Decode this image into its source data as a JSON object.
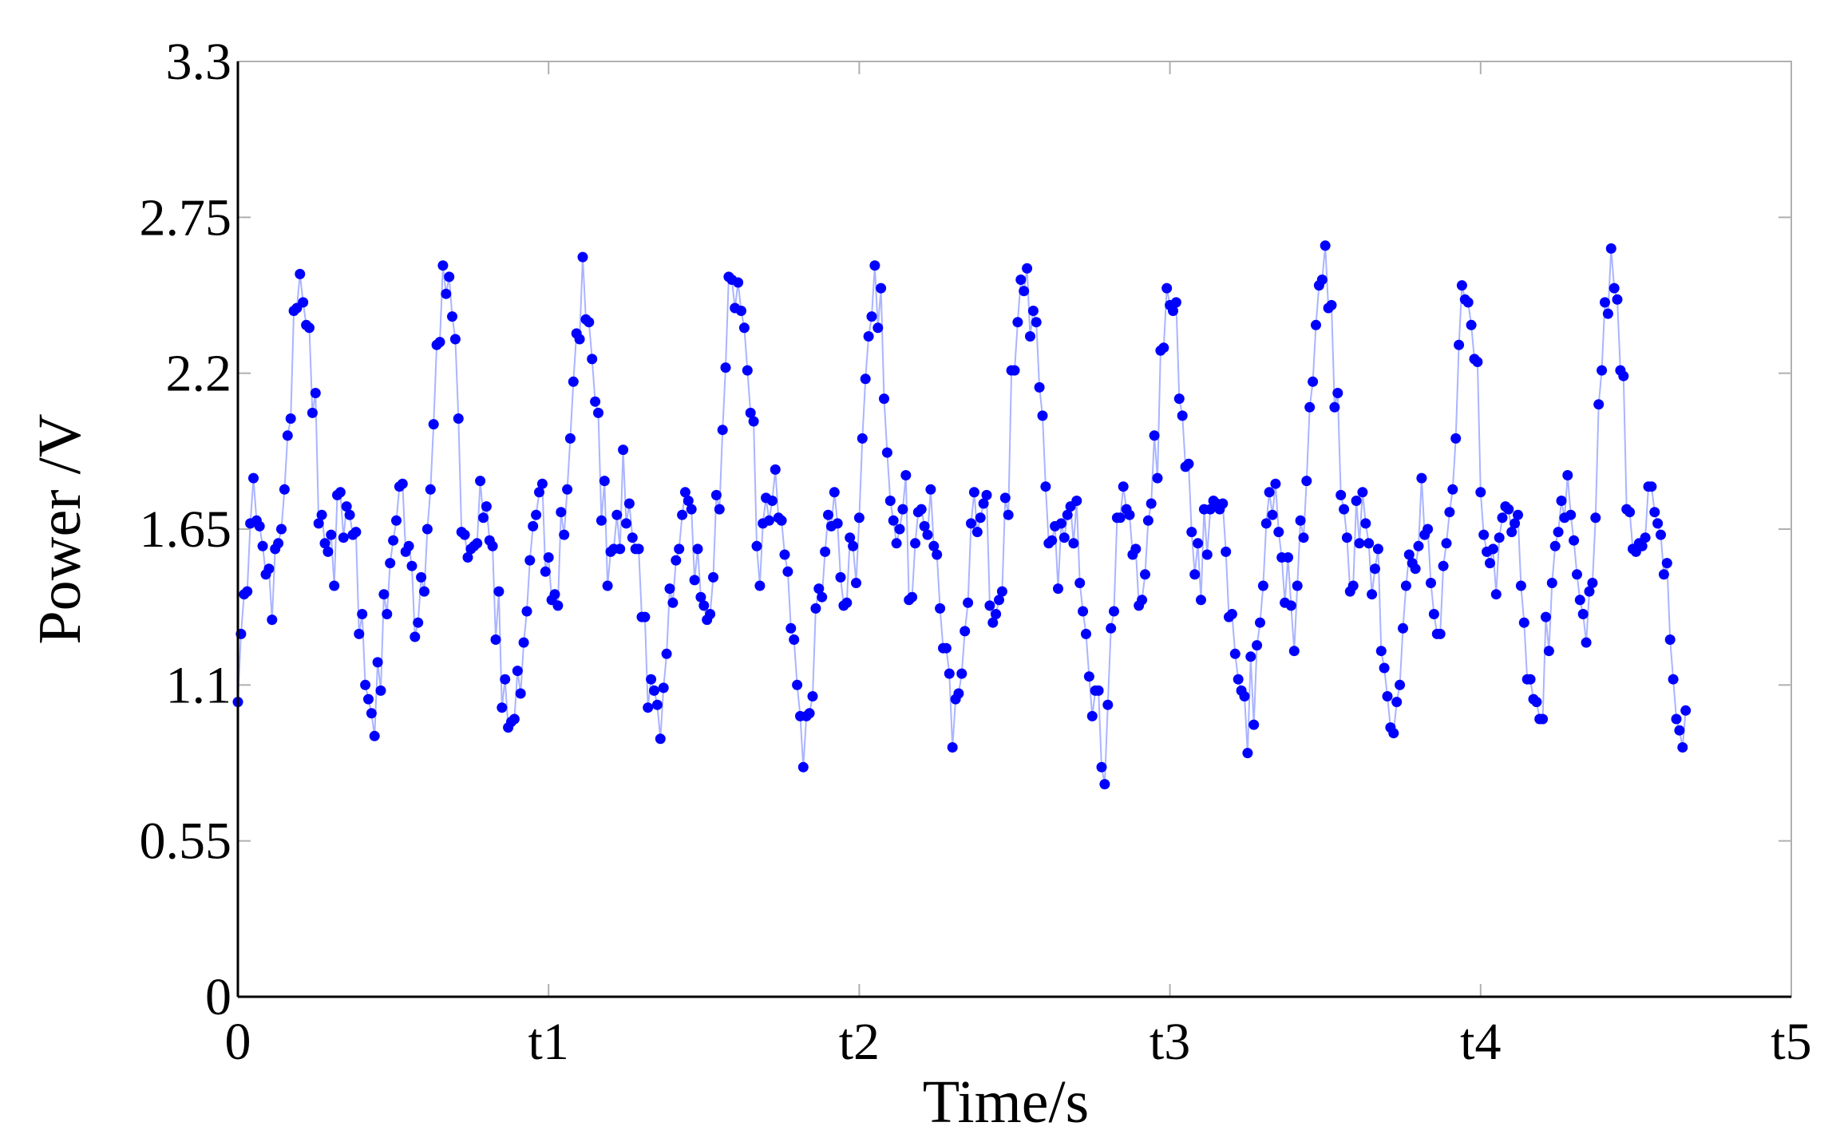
{
  "chart_data": {
    "type": "line",
    "title": "",
    "xlabel": "Time/s",
    "ylabel": "Power /V",
    "xlim": [
      0,
      5
    ],
    "ylim": [
      0,
      3.3
    ],
    "grid": false,
    "legend": null,
    "x_ticks": [
      {
        "value": 0,
        "label": "0"
      },
      {
        "value": 1,
        "label": "t1"
      },
      {
        "value": 2,
        "label": "t2"
      },
      {
        "value": 3,
        "label": "t3"
      },
      {
        "value": 4,
        "label": "t4"
      },
      {
        "value": 5,
        "label": "t5"
      }
    ],
    "y_ticks": [
      {
        "value": 0,
        "label": "0"
      },
      {
        "value": 0.55,
        "label": "0.55"
      },
      {
        "value": 1.1,
        "label": "1.1"
      },
      {
        "value": 1.65,
        "label": "1.65"
      },
      {
        "value": 2.2,
        "label": "2.2"
      },
      {
        "value": 2.75,
        "label": "2.75"
      },
      {
        "value": 3.3,
        "label": "3.3"
      }
    ],
    "colors": {
      "line": "#aab4ff",
      "marker": "#0000ff",
      "axis": "#000000",
      "tick": "#b0b0b0"
    },
    "series": [
      {
        "x_start": 0,
        "x_step": 0.01,
        "values": [
          1.04,
          1.28,
          1.42,
          1.43,
          1.67,
          1.83,
          1.68,
          1.66,
          1.59,
          1.49,
          1.51,
          1.33,
          1.58,
          1.6,
          1.65,
          1.79,
          1.98,
          2.04,
          2.42,
          2.43,
          2.55,
          2.45,
          2.37,
          2.36,
          2.06,
          2.13,
          1.67,
          1.7,
          1.6,
          1.57,
          1.63,
          1.45,
          1.77,
          1.78,
          1.62,
          1.73,
          1.7,
          1.63,
          1.64,
          1.28,
          1.35,
          1.1,
          1.05,
          1.0,
          0.92,
          1.18,
          1.08,
          1.42,
          1.35,
          1.53,
          1.61,
          1.68,
          1.8,
          1.81,
          1.57,
          1.59,
          1.52,
          1.27,
          1.32,
          1.48,
          1.43,
          1.65,
          1.79,
          2.02,
          2.3,
          2.31,
          2.58,
          2.48,
          2.54,
          2.4,
          2.32,
          2.04,
          1.64,
          1.63,
          1.55,
          1.58,
          1.59,
          1.6,
          1.82,
          1.69,
          1.73,
          1.61,
          1.59,
          1.26,
          1.43,
          1.02,
          1.12,
          0.95,
          0.97,
          0.98,
          1.15,
          1.07,
          1.25,
          1.36,
          1.54,
          1.66,
          1.7,
          1.78,
          1.81,
          1.5,
          1.55,
          1.4,
          1.42,
          1.38,
          1.71,
          1.63,
          1.79,
          1.97,
          2.17,
          2.34,
          2.32,
          2.61,
          2.39,
          2.38,
          2.25,
          2.1,
          2.06,
          1.68,
          1.82,
          1.45,
          1.57,
          1.58,
          1.7,
          1.58,
          1.93,
          1.67,
          1.74,
          1.62,
          1.58,
          1.58,
          1.34,
          1.34,
          1.02,
          1.12,
          1.08,
          1.03,
          0.91,
          1.09,
          1.21,
          1.44,
          1.39,
          1.54,
          1.58,
          1.7,
          1.78,
          1.75,
          1.72,
          1.47,
          1.58,
          1.41,
          1.38,
          1.33,
          1.35,
          1.48,
          1.77,
          1.72,
          2.0,
          2.22,
          2.54,
          2.53,
          2.43,
          2.52,
          2.42,
          2.36,
          2.21,
          2.06,
          2.03,
          1.59,
          1.45,
          1.67,
          1.76,
          1.68,
          1.75,
          1.86,
          1.69,
          1.68,
          1.56,
          1.5,
          1.3,
          1.26,
          1.1,
          0.99,
          0.81,
          0.99,
          1.0,
          1.06,
          1.37,
          1.44,
          1.41,
          1.57,
          1.7,
          1.66,
          1.78,
          1.67,
          1.48,
          1.38,
          1.39,
          1.62,
          1.59,
          1.46,
          1.69,
          1.97,
          2.18,
          2.33,
          2.4,
          2.58,
          2.36,
          2.5,
          2.11,
          1.92,
          1.75,
          1.68,
          1.6,
          1.65,
          1.72,
          1.84,
          1.4,
          1.41,
          1.6,
          1.71,
          1.72,
          1.66,
          1.63,
          1.79,
          1.59,
          1.56,
          1.37,
          1.23,
          1.23,
          1.14,
          0.88,
          1.05,
          1.07,
          1.14,
          1.29,
          1.39,
          1.67,
          1.78,
          1.64,
          1.69,
          1.74,
          1.77,
          1.38,
          1.32,
          1.35,
          1.4,
          1.43,
          1.76,
          1.7,
          2.21,
          2.21,
          2.38,
          2.53,
          2.49,
          2.57,
          2.33,
          2.42,
          2.38,
          2.15,
          2.05,
          1.8,
          1.6,
          1.61,
          1.66,
          1.44,
          1.67,
          1.62,
          1.7,
          1.73,
          1.6,
          1.75,
          1.46,
          1.36,
          1.28,
          1.13,
          0.99,
          1.08,
          1.08,
          0.81,
          0.75,
          1.03,
          1.3,
          1.36,
          1.69,
          1.69,
          1.8,
          1.72,
          1.7,
          1.56,
          1.58,
          1.38,
          1.4,
          1.49,
          1.68,
          1.74,
          1.98,
          1.83,
          2.28,
          2.29,
          2.5,
          2.44,
          2.42,
          2.45,
          2.11,
          2.05,
          1.87,
          1.88,
          1.64,
          1.49,
          1.6,
          1.4,
          1.72,
          1.56,
          1.72,
          1.75,
          1.74,
          1.72,
          1.74,
          1.57,
          1.34,
          1.35,
          1.21,
          1.12,
          1.08,
          1.06,
          0.86,
          1.2,
          0.96,
          1.24,
          1.32,
          1.45,
          1.67,
          1.78,
          1.7,
          1.81,
          1.64,
          1.55,
          1.39,
          1.55,
          1.38,
          1.22,
          1.45,
          1.68,
          1.62,
          1.82,
          2.08,
          2.17,
          2.37,
          2.51,
          2.53,
          2.65,
          2.43,
          2.44,
          2.08,
          2.13,
          1.77,
          1.72,
          1.62,
          1.43,
          1.45,
          1.75,
          1.6,
          1.78,
          1.67,
          1.6,
          1.42,
          1.51,
          1.58,
          1.22,
          1.16,
          1.06,
          0.95,
          0.93,
          1.04,
          1.1,
          1.3,
          1.45,
          1.56,
          1.53,
          1.51,
          1.59,
          1.83,
          1.63,
          1.65,
          1.46,
          1.35,
          1.28,
          1.28,
          1.52,
          1.6,
          1.71,
          1.79,
          1.97,
          2.3,
          2.51,
          2.46,
          2.45,
          2.37,
          2.25,
          2.24,
          1.78,
          1.63,
          1.57,
          1.53,
          1.58,
          1.42,
          1.62,
          1.69,
          1.73,
          1.72,
          1.64,
          1.67,
          1.7,
          1.45,
          1.32,
          1.12,
          1.12,
          1.05,
          1.04,
          0.98,
          0.98,
          1.34,
          1.22,
          1.46,
          1.59,
          1.64,
          1.75,
          1.69,
          1.84,
          1.7,
          1.61,
          1.49,
          1.4,
          1.35,
          1.25,
          1.43,
          1.46,
          1.69,
          2.09,
          2.21,
          2.45,
          2.41,
          2.64,
          2.5,
          2.46,
          2.21,
          2.19,
          1.72,
          1.71,
          1.58,
          1.57,
          1.6,
          1.59,
          1.62,
          1.8,
          1.8,
          1.71,
          1.67,
          1.63,
          1.49,
          1.53,
          1.26,
          1.12,
          0.98,
          0.94,
          0.88,
          1.01
        ]
      }
    ]
  }
}
